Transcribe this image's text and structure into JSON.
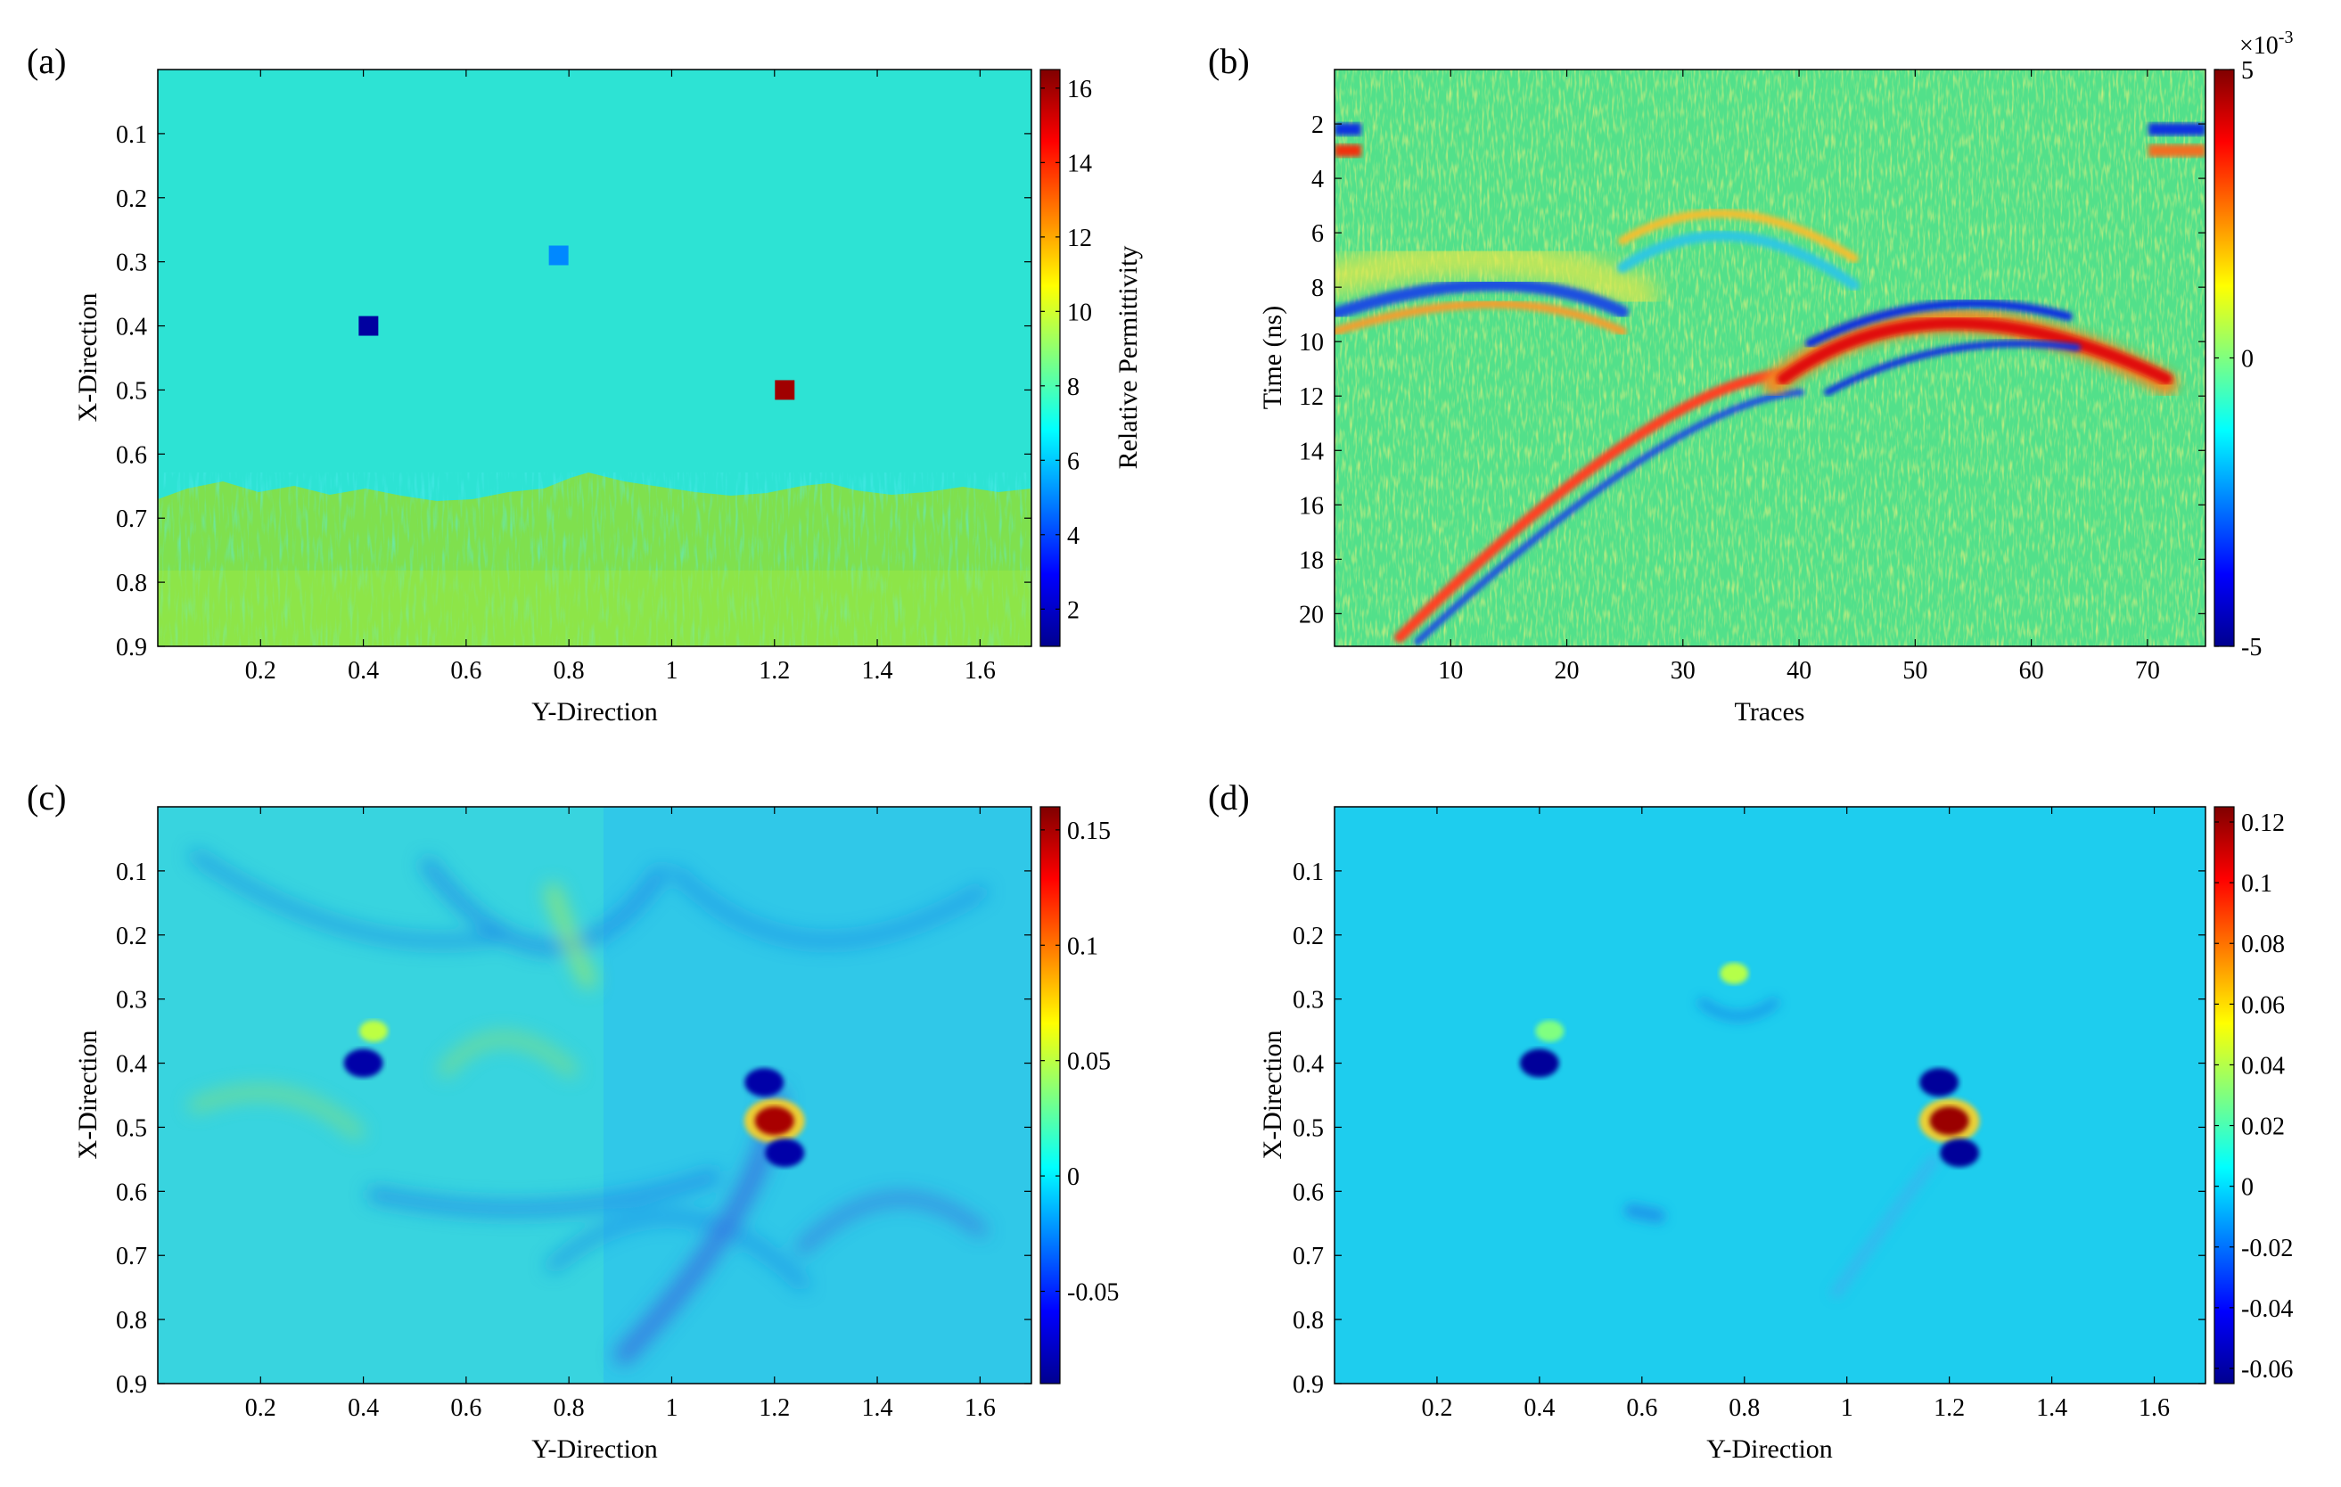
{
  "panels": [
    {
      "id": "a",
      "label": "(a)",
      "xlabel": "Y-Direction",
      "ylabel": "X-Direction",
      "xticks": [
        "0.2",
        "0.4",
        "0.6",
        "0.8",
        "1",
        "1.2",
        "1.4",
        "1.6"
      ],
      "yticks": [
        "0.1",
        "0.2",
        "0.3",
        "0.4",
        "0.5",
        "0.6",
        "0.7",
        "0.8",
        "0.9"
      ],
      "colorbar": {
        "label": "Relative Permittivity",
        "ticks": [
          "2",
          "4",
          "6",
          "8",
          "10",
          "12",
          "14",
          "16"
        ]
      }
    },
    {
      "id": "b",
      "label": "(b)",
      "xlabel": "Traces",
      "ylabel": "Time (ns)",
      "xticks": [
        "10",
        "20",
        "30",
        "40",
        "50",
        "60",
        "70"
      ],
      "yticks": [
        "2",
        "4",
        "6",
        "8",
        "10",
        "12",
        "14",
        "16",
        "18",
        "20"
      ],
      "colorbar": {
        "label": "",
        "multiplier_base": "×10",
        "multiplier_exp": "-3",
        "ticks": [
          "5",
          "0",
          "-5"
        ]
      }
    },
    {
      "id": "c",
      "label": "(c)",
      "xlabel": "Y-Direction",
      "ylabel": "X-Direction",
      "xticks": [
        "0.2",
        "0.4",
        "0.6",
        "0.8",
        "1",
        "1.2",
        "1.4",
        "1.6"
      ],
      "yticks": [
        "0.1",
        "0.2",
        "0.3",
        "0.4",
        "0.5",
        "0.6",
        "0.7",
        "0.8",
        "0.9"
      ],
      "colorbar": {
        "label": "",
        "ticks": [
          "0.15",
          "0.1",
          "0.05",
          "0",
          "-0.05"
        ]
      }
    },
    {
      "id": "d",
      "label": "(d)",
      "xlabel": "Y-Direction",
      "ylabel": "X-Direction",
      "xticks": [
        "0.2",
        "0.4",
        "0.6",
        "0.8",
        "1",
        "1.2",
        "1.4",
        "1.6"
      ],
      "yticks": [
        "0.1",
        "0.2",
        "0.3",
        "0.4",
        "0.5",
        "0.6",
        "0.7",
        "0.8",
        "0.9"
      ],
      "colorbar": {
        "label": "",
        "ticks": [
          "0.12",
          "0.1",
          "0.08",
          "0.06",
          "0.04",
          "0.02",
          "0",
          "-0.02",
          "-0.04",
          "-0.06"
        ]
      }
    }
  ],
  "chart_data": [
    {
      "type": "heatmap",
      "panel": "(a)",
      "title": "",
      "xlabel": "Y-Direction",
      "ylabel": "X-Direction",
      "xlim": [
        0,
        1.7
      ],
      "ylim": [
        0.9,
        0
      ],
      "clim": [
        1,
        16.5
      ],
      "colorbar_label": "Relative Permittivity",
      "background_value": 6.5,
      "layer": {
        "top_depth_approx": 0.67,
        "value_approx": 9
      },
      "targets": [
        {
          "y": 0.41,
          "x": 0.4,
          "value": 1.5
        },
        {
          "y": 0.78,
          "x": 0.29,
          "value": 5
        },
        {
          "y": 1.22,
          "x": 0.5,
          "value": 16
        }
      ]
    },
    {
      "type": "heatmap",
      "panel": "(b)",
      "title": "",
      "xlabel": "Traces",
      "ylabel": "Time (ns)",
      "xlim": [
        0,
        75
      ],
      "ylim": [
        21.2,
        0
      ],
      "clim": [
        -0.005,
        0.005
      ],
      "features": [
        {
          "kind": "hyperbola_apex",
          "trace": 55,
          "time_ns": 9.6,
          "polarity": "positive"
        },
        {
          "kind": "hyperbola_apex",
          "trace": 35,
          "time_ns": 5.8,
          "polarity": "negative"
        },
        {
          "kind": "hyperbola_apex",
          "trace": 16,
          "time_ns": 7.8,
          "polarity": "negative"
        }
      ]
    },
    {
      "type": "heatmap",
      "panel": "(c)",
      "title": "",
      "xlabel": "Y-Direction",
      "ylabel": "X-Direction",
      "xlim": [
        0,
        1.7
      ],
      "ylim": [
        0.9,
        0
      ],
      "clim": [
        -0.09,
        0.16
      ],
      "peaks": [
        {
          "y": 1.2,
          "x": 0.49,
          "value": 0.15
        },
        {
          "y": 1.18,
          "x": 0.43,
          "value": -0.08
        },
        {
          "y": 1.22,
          "x": 0.54,
          "value": -0.08
        },
        {
          "y": 0.4,
          "x": 0.4,
          "value": -0.08
        },
        {
          "y": 0.42,
          "x": 0.35,
          "value": 0.05
        }
      ]
    },
    {
      "type": "heatmap",
      "panel": "(d)",
      "title": "",
      "xlabel": "Y-Direction",
      "ylabel": "X-Direction",
      "xlim": [
        0,
        1.7
      ],
      "ylim": [
        0.9,
        0
      ],
      "clim": [
        -0.065,
        0.125
      ],
      "peaks": [
        {
          "y": 1.2,
          "x": 0.49,
          "value": 0.12
        },
        {
          "y": 1.18,
          "x": 0.43,
          "value": -0.06
        },
        {
          "y": 1.22,
          "x": 0.54,
          "value": -0.06
        },
        {
          "y": 0.4,
          "x": 0.4,
          "value": -0.06
        },
        {
          "y": 0.78,
          "x": 0.26,
          "value": 0.04
        },
        {
          "y": 0.42,
          "x": 0.35,
          "value": 0.03
        }
      ]
    }
  ]
}
